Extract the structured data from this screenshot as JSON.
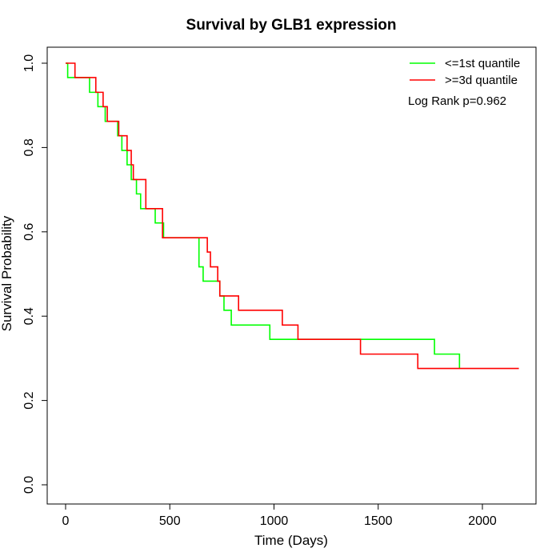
{
  "chart_data": {
    "type": "line",
    "subtype": "kaplan-meier step",
    "title": "Survival by GLB1 expression",
    "xlabel": "Time (Days)",
    "ylabel": "Survival Probability",
    "xlim": [
      0,
      2200
    ],
    "ylim": [
      0,
      1.0
    ],
    "xticks": [
      "0",
      "500",
      "1000",
      "1500",
      "2000"
    ],
    "yticks": [
      "0.0",
      "0.2",
      "0.4",
      "0.6",
      "0.8",
      "1.0"
    ],
    "grid": false,
    "legend_position": "top-right",
    "annotation": "Log Rank p=0.962",
    "series": [
      {
        "name": "<=1st quantile",
        "color": "#00ff00",
        "x": [
          0,
          10,
          115,
          155,
          190,
          250,
          270,
          295,
          315,
          340,
          360,
          430,
          470,
          640,
          660,
          740,
          760,
          795,
          980,
          1770,
          1890
        ],
        "y": [
          1.0,
          0.966,
          0.931,
          0.897,
          0.862,
          0.828,
          0.793,
          0.759,
          0.724,
          0.69,
          0.655,
          0.621,
          0.586,
          0.517,
          0.483,
          0.448,
          0.414,
          0.379,
          0.345,
          0.31,
          0.276
        ]
      },
      {
        "name": ">=3d quantile",
        "color": "#ff0000",
        "x": [
          0,
          45,
          145,
          180,
          200,
          255,
          295,
          315,
          325,
          385,
          465,
          680,
          695,
          730,
          740,
          830,
          1040,
          1115,
          1415,
          1690,
          2175
        ],
        "y": [
          1.0,
          0.966,
          0.931,
          0.897,
          0.862,
          0.828,
          0.793,
          0.759,
          0.724,
          0.655,
          0.586,
          0.552,
          0.517,
          0.483,
          0.448,
          0.414,
          0.379,
          0.345,
          0.31,
          0.276,
          0.276
        ]
      }
    ]
  }
}
